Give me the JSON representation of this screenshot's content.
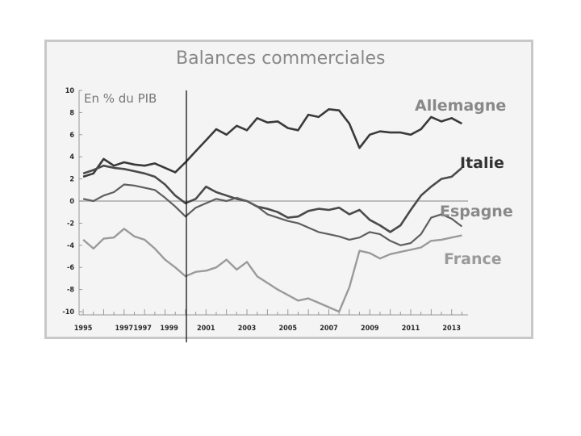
{
  "chart_data": {
    "type": "line",
    "title": "Balances commerciales",
    "unit_label": "En % du PIB",
    "xlim": [
      1994.8,
      2013.8
    ],
    "ylim": [
      -10,
      10
    ],
    "y_ticks": [
      10,
      8,
      6,
      4,
      2,
      0,
      -2,
      -4,
      -6,
      -8,
      -10
    ],
    "x_ticks": [
      "1995",
      "1997",
      "1997",
      "1999",
      "2001",
      "2003",
      "2005",
      "2007",
      "2009",
      "2011",
      "2013"
    ],
    "x_tick_years": [
      1995,
      1997,
      1997.9,
      1999.2,
      2001,
      2003,
      2005,
      2007,
      2009,
      2011,
      2013
    ],
    "zero_line": true,
    "colors": {
      "Allemagne": "#3a3a3a",
      "Italie": "#4a4a4a",
      "Espagne": "#5e5e5e",
      "France": "#9a9a9a",
      "zero_line": "#aaaaaa"
    },
    "series": [
      {
        "name": "Allemagne",
        "x": [
          1995,
          1995.5,
          1996,
          1996.5,
          1997,
          1997.5,
          1998,
          1998.5,
          1999,
          1999.5,
          2000,
          2000.5,
          2001,
          2001.5,
          2002,
          2002.5,
          2003,
          2003.5,
          2004,
          2004.5,
          2005,
          2005.5,
          2006,
          2006.5,
          2007,
          2007.5,
          2008,
          2008.5,
          2009,
          2009.5,
          2010,
          2010.5,
          2011,
          2011.5,
          2012,
          2012.5,
          2013,
          2013.5
        ],
        "y": [
          2.2,
          2.5,
          3.8,
          3.2,
          3.5,
          3.3,
          3.2,
          3.4,
          3.0,
          2.6,
          3.5,
          4.5,
          5.5,
          6.5,
          6.0,
          6.8,
          6.4,
          7.5,
          7.1,
          7.2,
          6.6,
          6.4,
          7.8,
          7.6,
          8.3,
          8.2,
          7.0,
          4.8,
          6.0,
          6.3,
          6.2,
          6.2,
          6.0,
          6.5,
          7.6,
          7.2,
          7.5,
          7.0
        ]
      },
      {
        "name": "Italie",
        "x": [
          1995,
          1995.5,
          1996,
          1996.5,
          1997,
          1997.5,
          1998,
          1998.5,
          1999,
          1999.5,
          2000,
          2000.5,
          2001,
          2001.5,
          2002,
          2002.5,
          2003,
          2003.5,
          2004,
          2004.5,
          2005,
          2005.5,
          2006,
          2006.5,
          2007,
          2007.5,
          2008,
          2008.5,
          2009,
          2009.5,
          2010,
          2010.5,
          2011,
          2011.5,
          2012,
          2012.5,
          2013,
          2013.5
        ],
        "y": [
          2.5,
          2.8,
          3.2,
          3.0,
          2.9,
          2.7,
          2.5,
          2.2,
          1.5,
          0.5,
          -0.2,
          0.2,
          1.3,
          0.8,
          0.5,
          0.2,
          0.0,
          -0.5,
          -0.7,
          -1.0,
          -1.5,
          -1.4,
          -0.9,
          -0.7,
          -0.8,
          -0.6,
          -1.2,
          -0.8,
          -1.7,
          -2.2,
          -2.8,
          -2.2,
          -0.8,
          0.5,
          1.3,
          2.0,
          2.2,
          3.0
        ]
      },
      {
        "name": "Espagne",
        "x": [
          1995,
          1995.5,
          1996,
          1996.5,
          1997,
          1997.5,
          1998,
          1998.5,
          1999,
          1999.5,
          2000,
          2000.5,
          2001,
          2001.5,
          2002,
          2002.5,
          2003,
          2003.5,
          2004,
          2004.5,
          2005,
          2005.5,
          2006,
          2006.5,
          2007,
          2007.5,
          2008,
          2008.5,
          2009,
          2009.5,
          2010,
          2010.5,
          2011,
          2011.5,
          2012,
          2012.5,
          2013,
          2013.5
        ],
        "y": [
          0.2,
          0.0,
          0.5,
          0.8,
          1.5,
          1.4,
          1.2,
          1.0,
          0.3,
          -0.5,
          -1.4,
          -0.6,
          -0.2,
          0.2,
          0.0,
          0.3,
          0.0,
          -0.5,
          -1.2,
          -1.5,
          -1.8,
          -2.0,
          -2.4,
          -2.8,
          -3.0,
          -3.2,
          -3.5,
          -3.3,
          -2.8,
          -3.0,
          -3.6,
          -4.0,
          -3.8,
          -3.0,
          -1.5,
          -1.2,
          -1.6,
          -2.3
        ]
      },
      {
        "name": "France",
        "x": [
          1995,
          1995.5,
          1996,
          1996.5,
          1997,
          1997.5,
          1998,
          1998.5,
          1999,
          1999.5,
          2000,
          2000.5,
          2001,
          2001.5,
          2002,
          2002.5,
          2003,
          2003.5,
          2004,
          2004.5,
          2005,
          2005.5,
          2006,
          2006.5,
          2007,
          2007.5,
          2008,
          2008.5,
          2009,
          2009.5,
          2010,
          2010.5,
          2011,
          2011.5,
          2012,
          2012.5,
          2013,
          2013.5
        ],
        "y": [
          -3.5,
          -4.3,
          -3.4,
          -3.3,
          -2.5,
          -3.2,
          -3.5,
          -4.3,
          -5.3,
          -6.0,
          -6.8,
          -6.4,
          -6.3,
          -6.0,
          -5.3,
          -6.2,
          -5.5,
          -6.8,
          -7.4,
          -8.0,
          -8.5,
          -9.0,
          -8.8,
          -9.2,
          -9.6,
          -10.0,
          -7.8,
          -4.5,
          -4.7,
          -5.2,
          -4.8,
          -4.6,
          -4.4,
          -4.2,
          -3.6,
          -3.5,
          -3.3,
          -3.1
        ]
      }
    ]
  }
}
